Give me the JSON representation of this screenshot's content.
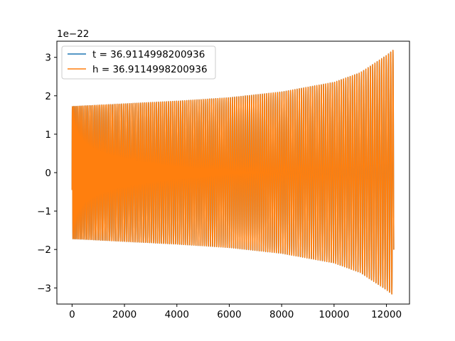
{
  "chart_data": {
    "type": "line",
    "offset_text": "1e−22",
    "xlim": [
      -580,
      12880
    ],
    "ylim": [
      -3.42,
      3.42
    ],
    "xticks": [
      {
        "value": 0,
        "label": "0"
      },
      {
        "value": 2000,
        "label": "2000"
      },
      {
        "value": 4000,
        "label": "4000"
      },
      {
        "value": 6000,
        "label": "6000"
      },
      {
        "value": 8000,
        "label": "8000"
      },
      {
        "value": 10000,
        "label": "10000"
      },
      {
        "value": 12000,
        "label": "12000"
      }
    ],
    "yticks": [
      {
        "value": 3,
        "label": "3"
      },
      {
        "value": 2,
        "label": "2"
      },
      {
        "value": 1,
        "label": "1"
      },
      {
        "value": 0,
        "label": "0"
      },
      {
        "value": -1,
        "label": "−1"
      },
      {
        "value": -2,
        "label": "−2"
      },
      {
        "value": -3,
        "label": "−3"
      }
    ],
    "grid": false,
    "legend_position": "upper-left",
    "series": [
      {
        "name": "t = 36.9114998200936",
        "color": "#1f77b4",
        "x_range": [
          0,
          12280
        ],
        "start_value": -0.45,
        "envelope": {
          "x": [
            0,
            2000,
            4000,
            6000,
            8000,
            10000,
            11000,
            12000,
            12280
          ],
          "amplitude": [
            1.72,
            1.79,
            1.86,
            1.95,
            2.1,
            2.35,
            2.6,
            3.05,
            3.2
          ]
        },
        "cycles": 158
      },
      {
        "name": "h = 36.9114998200936",
        "color": "#ff7f0e",
        "x_range": [
          0,
          12280
        ],
        "start_value": -0.45,
        "envelope": {
          "x": [
            0,
            2000,
            4000,
            6000,
            8000,
            10000,
            11000,
            12000,
            12280
          ],
          "amplitude": [
            1.72,
            1.79,
            1.86,
            1.95,
            2.1,
            2.35,
            2.6,
            3.05,
            3.2
          ]
        },
        "cycles": 158
      }
    ]
  }
}
